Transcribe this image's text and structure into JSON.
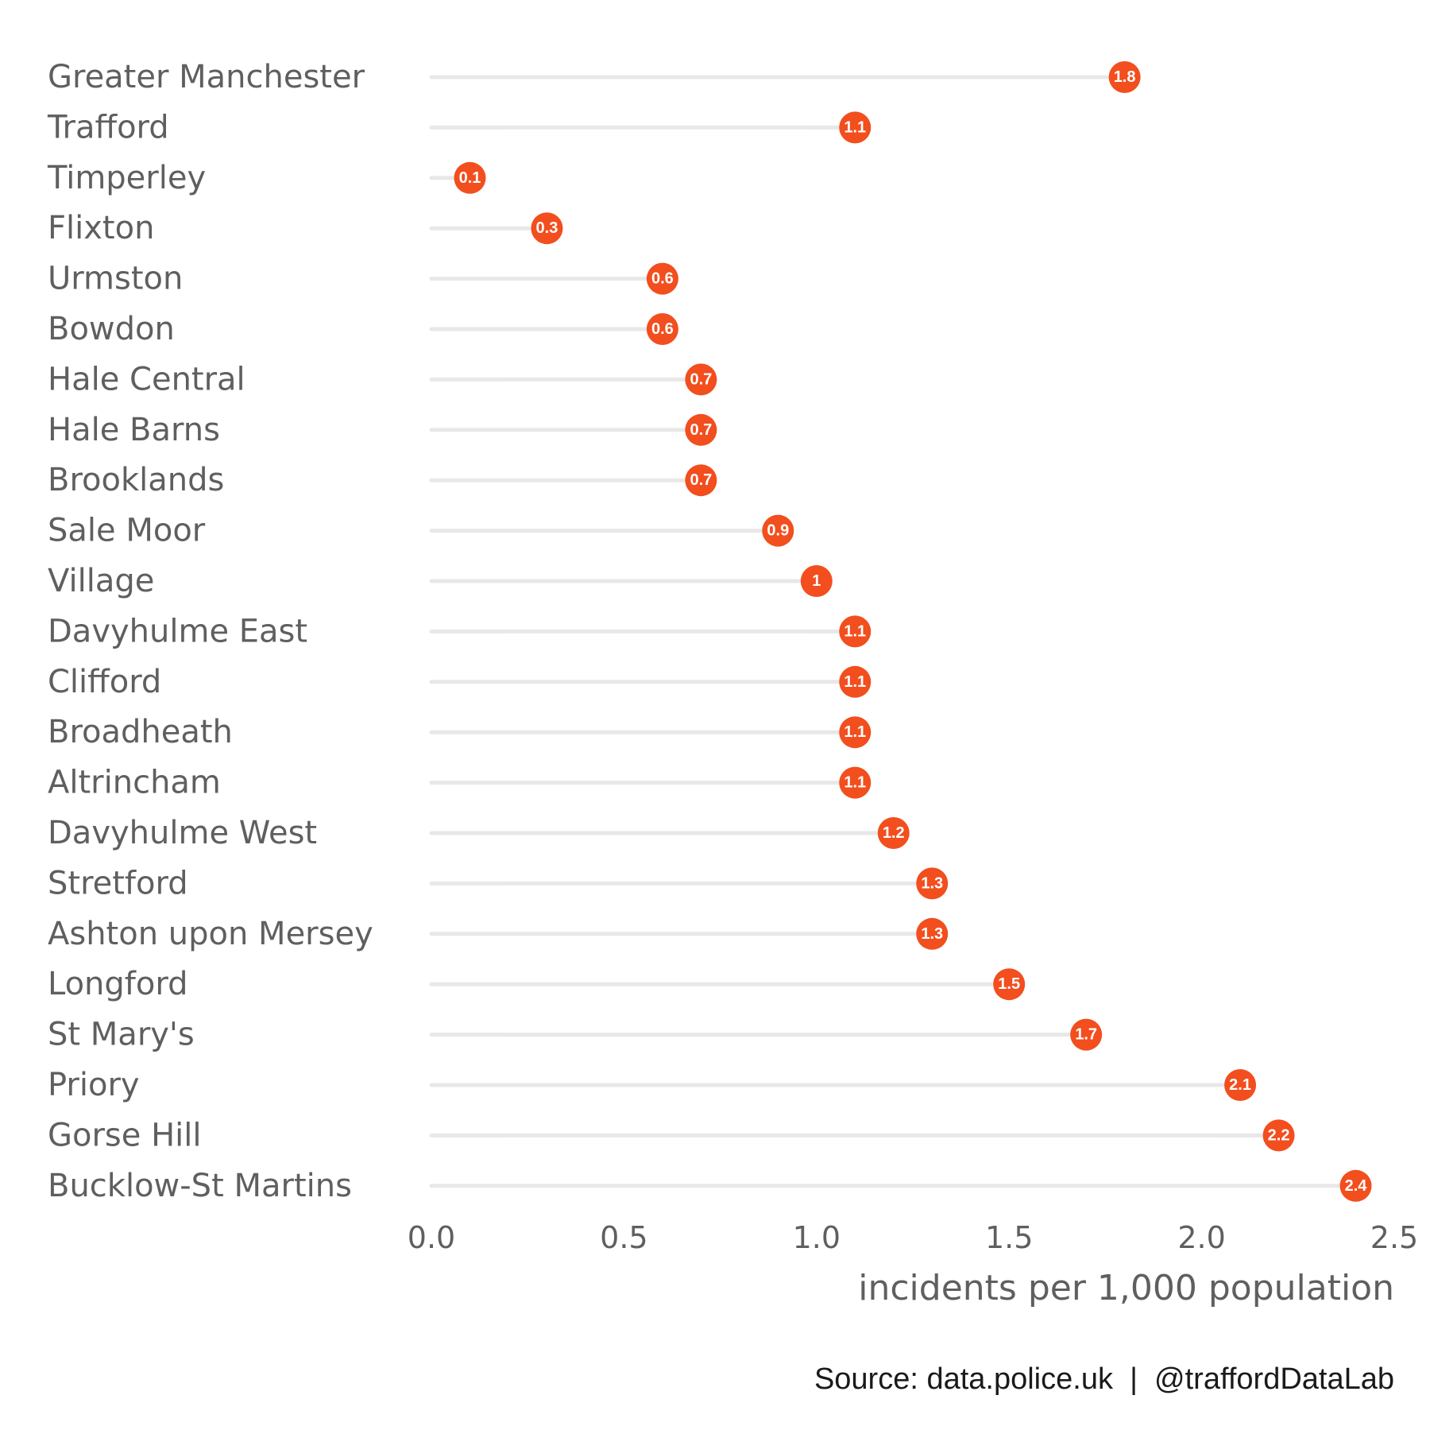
{
  "chart_data": {
    "type": "lollipop",
    "categories": [
      "Greater Manchester",
      "Trafford",
      "Timperley",
      "Flixton",
      "Urmston",
      "Bowdon",
      "Hale Central",
      "Hale Barns",
      "Brooklands",
      "Sale Moor",
      "Village",
      "Davyhulme East",
      "Clifford",
      "Broadheath",
      "Altrincham",
      "Davyhulme West",
      "Stretford",
      "Ashton upon Mersey",
      "Longford",
      "St Mary's",
      "Priory",
      "Gorse Hill",
      "Bucklow-St Martins"
    ],
    "values": [
      1.8,
      1.1,
      0.1,
      0.3,
      0.6,
      0.6,
      0.7,
      0.7,
      0.7,
      0.9,
      1,
      1.1,
      1.1,
      1.1,
      1.1,
      1.2,
      1.3,
      1.3,
      1.5,
      1.7,
      2.1,
      2.2,
      2.4
    ],
    "value_labels": [
      "1.8",
      "1.1",
      "0.1",
      "0.3",
      "0.6",
      "0.6",
      "0.7",
      "0.7",
      "0.7",
      "0.9",
      "1",
      "1.1",
      "1.1",
      "1.1",
      "1.1",
      "1.2",
      "1.3",
      "1.3",
      "1.5",
      "1.7",
      "2.1",
      "2.2",
      "2.4"
    ],
    "xlabel": "incidents per 1,000 population",
    "ylabel": "",
    "xlim": [
      0,
      2.5
    ],
    "x_ticks": [
      "0.0",
      "0.5",
      "1.0",
      "1.5",
      "2.0",
      "2.5"
    ],
    "grid": false,
    "legend": "none",
    "caption": "Source: data.police.uk  |  @traffordDataLab",
    "colors": {
      "point": "#f24e1e",
      "segment": "#e8e8e8",
      "text": "#5f5f5f",
      "caption": "#1a1a1a"
    }
  }
}
